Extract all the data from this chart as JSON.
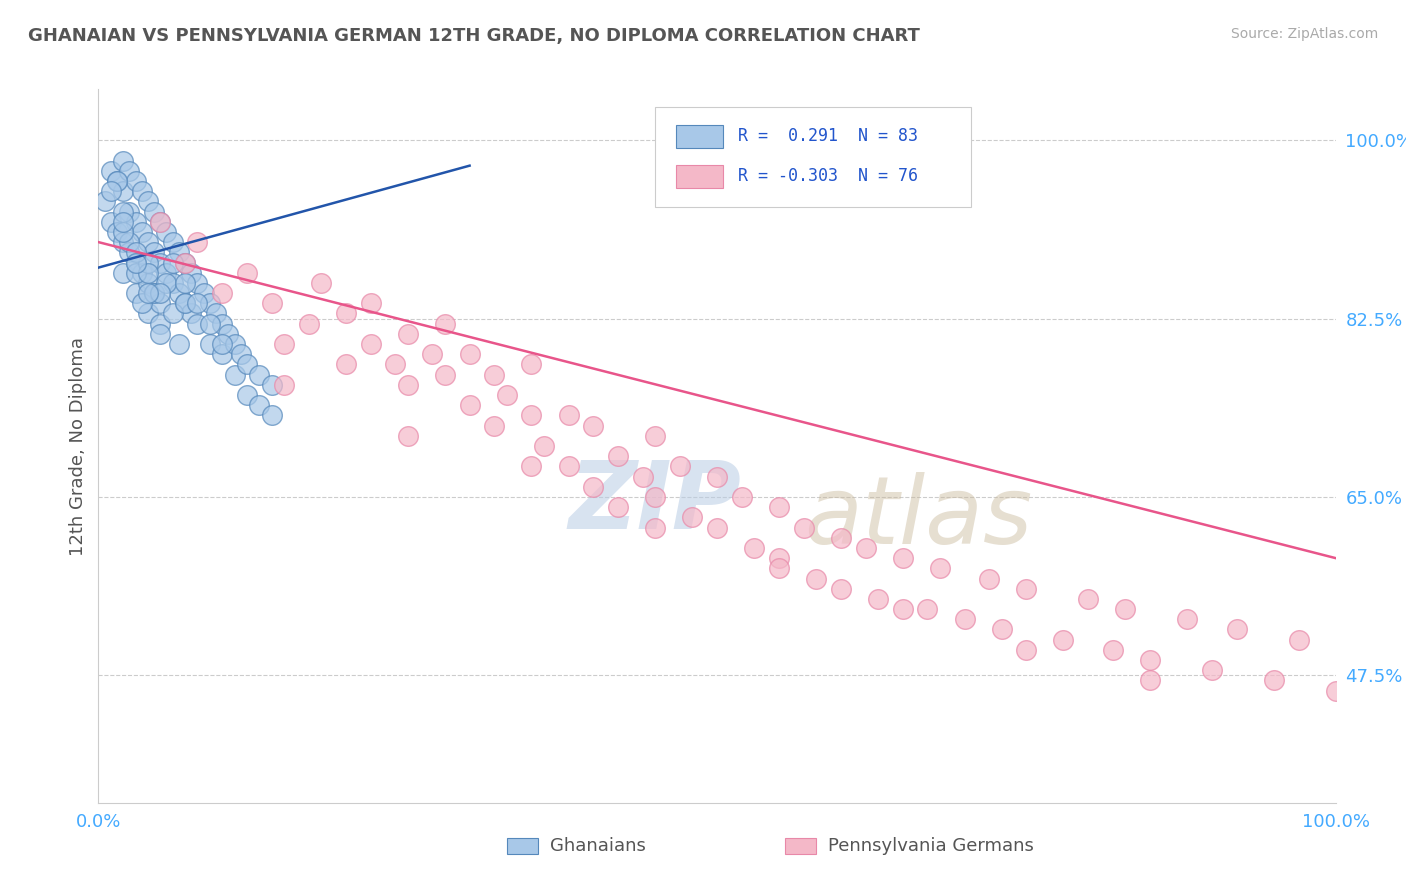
{
  "title": "GHANAIAN VS PENNSYLVANIA GERMAN 12TH GRADE, NO DIPLOMA CORRELATION CHART",
  "source": "Source: ZipAtlas.com",
  "ylabel": "12th Grade, No Diploma",
  "xlim": [
    0.0,
    1.0
  ],
  "ylim": [
    0.35,
    1.05
  ],
  "y_tick_positions": [
    0.475,
    0.65,
    0.825,
    1.0
  ],
  "y_tick_labels": [
    "47.5%",
    "65.0%",
    "82.5%",
    "100.0%"
  ],
  "grid_color": "#cccccc",
  "bg_color": "#ffffff",
  "ghanaian_color": "#a8c8e8",
  "penn_german_color": "#f4b8c8",
  "ghanaian_edge_color": "#5588bb",
  "penn_german_edge_color": "#e888a8",
  "trend_blue_color": "#2255aa",
  "trend_pink_color": "#e8558a",
  "R_ghanaian": 0.291,
  "N_ghanaian": 83,
  "R_penn": -0.303,
  "N_penn": 76,
  "legend_labels": [
    "Ghanaians",
    "Pennsylvania Germans"
  ],
  "ghanaian_x": [
    0.005,
    0.01,
    0.01,
    0.015,
    0.015,
    0.02,
    0.02,
    0.02,
    0.02,
    0.025,
    0.025,
    0.025,
    0.03,
    0.03,
    0.03,
    0.03,
    0.035,
    0.035,
    0.035,
    0.04,
    0.04,
    0.04,
    0.04,
    0.045,
    0.045,
    0.045,
    0.05,
    0.05,
    0.05,
    0.055,
    0.055,
    0.06,
    0.06,
    0.065,
    0.065,
    0.07,
    0.07,
    0.075,
    0.075,
    0.08,
    0.08,
    0.085,
    0.09,
    0.09,
    0.095,
    0.1,
    0.1,
    0.105,
    0.11,
    0.11,
    0.115,
    0.12,
    0.12,
    0.13,
    0.13,
    0.14,
    0.14,
    0.015,
    0.02,
    0.025,
    0.03,
    0.035,
    0.04,
    0.045,
    0.05,
    0.055,
    0.06,
    0.065,
    0.07,
    0.02,
    0.03,
    0.04,
    0.05,
    0.06,
    0.07,
    0.08,
    0.09,
    0.1,
    0.01,
    0.02,
    0.03,
    0.04,
    0.05
  ],
  "ghanaian_y": [
    0.94,
    0.97,
    0.92,
    0.96,
    0.91,
    0.98,
    0.95,
    0.9,
    0.87,
    0.97,
    0.93,
    0.89,
    0.96,
    0.92,
    0.88,
    0.85,
    0.95,
    0.91,
    0.87,
    0.94,
    0.9,
    0.86,
    0.83,
    0.93,
    0.89,
    0.85,
    0.92,
    0.88,
    0.84,
    0.91,
    0.87,
    0.9,
    0.86,
    0.89,
    0.85,
    0.88,
    0.84,
    0.87,
    0.83,
    0.86,
    0.82,
    0.85,
    0.84,
    0.8,
    0.83,
    0.82,
    0.79,
    0.81,
    0.8,
    0.77,
    0.79,
    0.78,
    0.75,
    0.77,
    0.74,
    0.76,
    0.73,
    0.96,
    0.93,
    0.9,
    0.87,
    0.84,
    0.88,
    0.85,
    0.82,
    0.86,
    0.83,
    0.8,
    0.84,
    0.91,
    0.89,
    0.87,
    0.85,
    0.88,
    0.86,
    0.84,
    0.82,
    0.8,
    0.95,
    0.92,
    0.88,
    0.85,
    0.81
  ],
  "penn_x": [
    0.05,
    0.07,
    0.08,
    0.1,
    0.12,
    0.14,
    0.15,
    0.17,
    0.18,
    0.2,
    0.2,
    0.22,
    0.22,
    0.24,
    0.25,
    0.25,
    0.27,
    0.28,
    0.28,
    0.3,
    0.3,
    0.32,
    0.32,
    0.33,
    0.35,
    0.35,
    0.36,
    0.38,
    0.38,
    0.4,
    0.4,
    0.42,
    0.42,
    0.44,
    0.45,
    0.45,
    0.47,
    0.48,
    0.5,
    0.5,
    0.52,
    0.53,
    0.55,
    0.55,
    0.57,
    0.58,
    0.6,
    0.6,
    0.62,
    0.63,
    0.65,
    0.67,
    0.68,
    0.7,
    0.72,
    0.73,
    0.75,
    0.78,
    0.8,
    0.82,
    0.83,
    0.85,
    0.88,
    0.9,
    0.92,
    0.95,
    0.97,
    1.0,
    0.15,
    0.25,
    0.35,
    0.45,
    0.55,
    0.65,
    0.75,
    0.85
  ],
  "penn_y": [
    0.92,
    0.88,
    0.9,
    0.85,
    0.87,
    0.84,
    0.8,
    0.82,
    0.86,
    0.83,
    0.78,
    0.8,
    0.84,
    0.78,
    0.81,
    0.76,
    0.79,
    0.77,
    0.82,
    0.79,
    0.74,
    0.77,
    0.72,
    0.75,
    0.78,
    0.73,
    0.7,
    0.73,
    0.68,
    0.72,
    0.66,
    0.69,
    0.64,
    0.67,
    0.71,
    0.65,
    0.68,
    0.63,
    0.67,
    0.62,
    0.65,
    0.6,
    0.64,
    0.59,
    0.62,
    0.57,
    0.61,
    0.56,
    0.6,
    0.55,
    0.59,
    0.54,
    0.58,
    0.53,
    0.57,
    0.52,
    0.56,
    0.51,
    0.55,
    0.5,
    0.54,
    0.49,
    0.53,
    0.48,
    0.52,
    0.47,
    0.51,
    0.46,
    0.76,
    0.71,
    0.68,
    0.62,
    0.58,
    0.54,
    0.5,
    0.47
  ],
  "blue_trend_x": [
    0.0,
    0.3
  ],
  "blue_trend_y": [
    0.875,
    0.975
  ],
  "pink_trend_x": [
    0.0,
    1.0
  ],
  "pink_trend_y": [
    0.9,
    0.59
  ]
}
